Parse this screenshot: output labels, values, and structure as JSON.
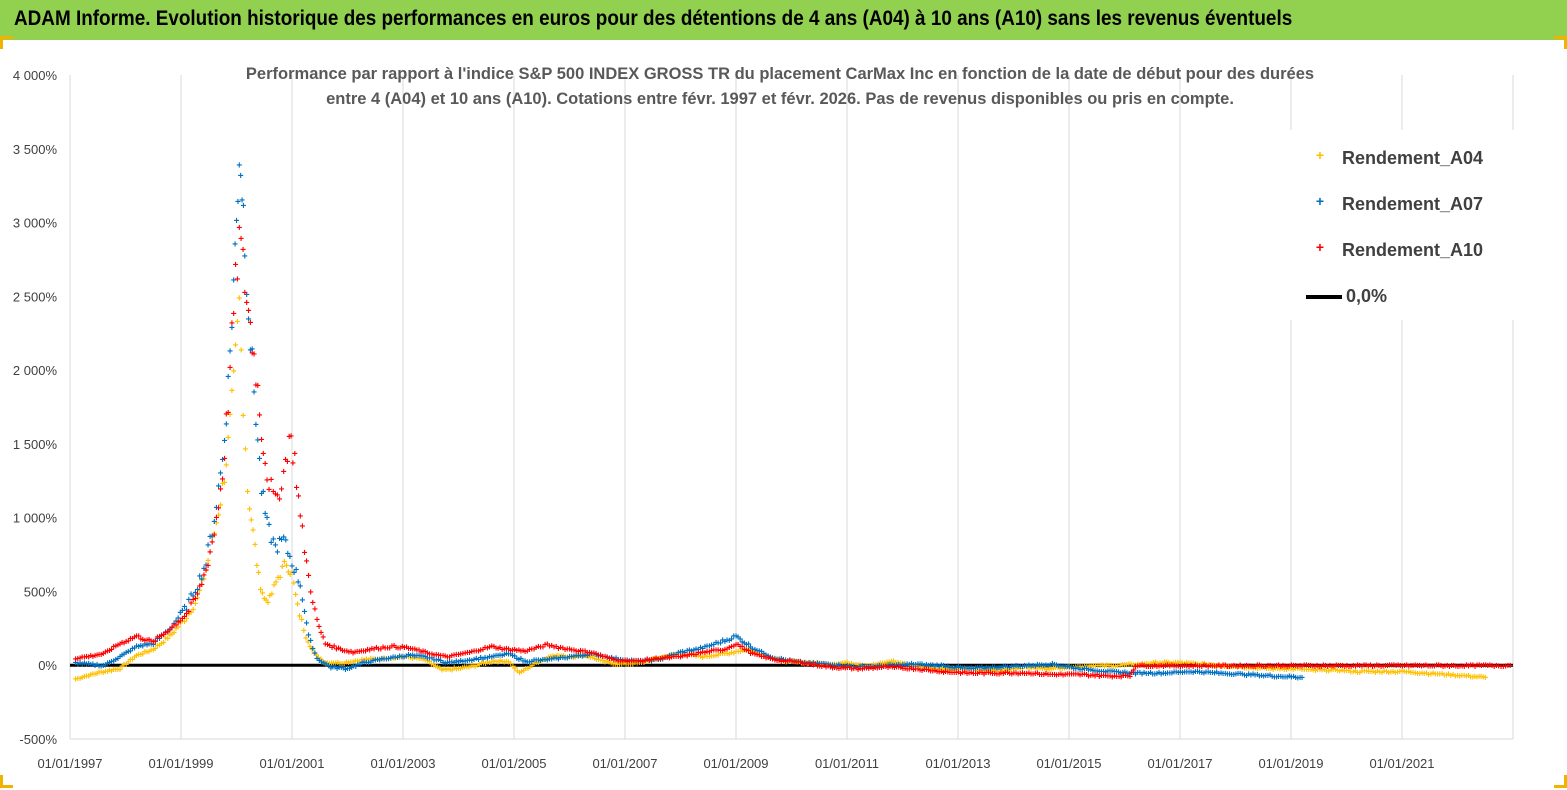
{
  "banner": {
    "title": "ADAM Informe. Evolution historique des performances en euros pour des détentions de 4 ans (A04) à 10 ans (A10) sans les revenus éventuels",
    "background": "#92d050"
  },
  "chart_data": {
    "type": "scatter",
    "title_lines": [
      "Performance par rapport à l'indice S&P 500 INDEX GROSS TR  du placement CarMax Inc en fonction de la date de début pour des durées",
      "entre 4 (A04) et 10 ans (A10). Cotations entre févr. 1997 et févr. 2026.  Pas de revenus disponibles ou pris en compte."
    ],
    "ylim": [
      -500,
      4000
    ],
    "y_unit": "%",
    "y_ticks": [
      "-500%",
      "0%",
      "500%",
      "1 000%",
      "1 500%",
      "2 000%",
      "2 500%",
      "3 000%",
      "3 500%",
      "4 000%"
    ],
    "x_ticks": [
      "01/01/1997",
      "01/01/1999",
      "01/01/2001",
      "01/01/2003",
      "01/01/2005",
      "01/01/2007",
      "01/01/2009",
      "01/01/2011",
      "01/01/2013",
      "01/01/2015",
      "01/01/2017",
      "01/01/2019",
      "01/01/2021"
    ],
    "xlim": [
      1997.0,
      2023.0
    ],
    "grid": "vertical",
    "legend_position": "top-right",
    "series": [
      {
        "name": "Rendement_A04",
        "color": "#ffc000",
        "marker": "+",
        "points": [
          [
            1997.1,
            -90
          ],
          [
            1997.3,
            -70
          ],
          [
            1997.6,
            -40
          ],
          [
            1997.9,
            -20
          ],
          [
            1998.2,
            70
          ],
          [
            1998.5,
            110
          ],
          [
            1998.8,
            200
          ],
          [
            1999.1,
            330
          ],
          [
            1999.3,
            450
          ],
          [
            1999.45,
            650
          ],
          [
            1999.6,
            900
          ],
          [
            1999.75,
            1200
          ],
          [
            1999.85,
            1500
          ],
          [
            1999.95,
            1900
          ],
          [
            2000.05,
            2450
          ],
          [
            2000.12,
            1800
          ],
          [
            2000.2,
            1200
          ],
          [
            2000.3,
            900
          ],
          [
            2000.4,
            600
          ],
          [
            2000.5,
            450
          ],
          [
            2000.6,
            450
          ],
          [
            2000.75,
            600
          ],
          [
            2000.9,
            700
          ],
          [
            2001.0,
            620
          ],
          [
            2001.1,
            400
          ],
          [
            2001.25,
            200
          ],
          [
            2001.4,
            80
          ],
          [
            2001.6,
            20
          ],
          [
            2001.9,
            20
          ],
          [
            2002.3,
            40
          ],
          [
            2002.7,
            50
          ],
          [
            2003.1,
            60
          ],
          [
            2003.4,
            40
          ],
          [
            2003.7,
            -30
          ],
          [
            2004.0,
            -20
          ],
          [
            2004.3,
            0
          ],
          [
            2004.6,
            30
          ],
          [
            2004.9,
            30
          ],
          [
            2005.1,
            -50
          ],
          [
            2005.4,
            20
          ],
          [
            2005.7,
            70
          ],
          [
            2006.0,
            60
          ],
          [
            2006.3,
            70
          ],
          [
            2006.6,
            30
          ],
          [
            2006.9,
            10
          ],
          [
            2007.3,
            20
          ],
          [
            2007.7,
            60
          ],
          [
            2008.0,
            80
          ],
          [
            2008.4,
            60
          ],
          [
            2008.8,
            80
          ],
          [
            2009.2,
            110
          ],
          [
            2009.5,
            70
          ],
          [
            2009.9,
            30
          ],
          [
            2010.3,
            20
          ],
          [
            2010.7,
            10
          ],
          [
            2011.0,
            20
          ],
          [
            2011.4,
            0
          ],
          [
            2011.8,
            30
          ],
          [
            2012.2,
            0
          ],
          [
            2012.6,
            -20
          ],
          [
            2013.0,
            -20
          ],
          [
            2013.4,
            -30
          ],
          [
            2013.8,
            -30
          ],
          [
            2014.2,
            -10
          ],
          [
            2014.6,
            -20
          ],
          [
            2015.0,
            -10
          ],
          [
            2015.4,
            0
          ],
          [
            2015.8,
            0
          ],
          [
            2016.2,
            10
          ],
          [
            2016.6,
            20
          ],
          [
            2017.0,
            20
          ],
          [
            2017.4,
            10
          ],
          [
            2017.8,
            0
          ],
          [
            2018.2,
            -10
          ],
          [
            2018.6,
            -20
          ],
          [
            2019.0,
            -20
          ],
          [
            2019.4,
            -30
          ],
          [
            2019.8,
            -30
          ],
          [
            2020.2,
            -40
          ],
          [
            2020.6,
            -40
          ],
          [
            2021.0,
            -40
          ],
          [
            2021.4,
            -50
          ],
          [
            2021.8,
            -60
          ],
          [
            2022.2,
            -70
          ],
          [
            2022.5,
            -80
          ]
        ]
      },
      {
        "name": "Rendement_A07",
        "color": "#0070c0",
        "marker": "+",
        "points": [
          [
            1997.1,
            20
          ],
          [
            1997.3,
            10
          ],
          [
            1997.6,
            0
          ],
          [
            1997.9,
            60
          ],
          [
            1998.2,
            130
          ],
          [
            1998.5,
            150
          ],
          [
            1998.8,
            250
          ],
          [
            1999.1,
            400
          ],
          [
            1999.3,
            550
          ],
          [
            1999.45,
            700
          ],
          [
            1999.6,
            1000
          ],
          [
            1999.75,
            1400
          ],
          [
            1999.85,
            1900
          ],
          [
            1999.95,
            2600
          ],
          [
            2000.0,
            3000
          ],
          [
            2000.05,
            3500
          ],
          [
            2000.1,
            3250
          ],
          [
            2000.15,
            2900
          ],
          [
            2000.25,
            2200
          ],
          [
            2000.35,
            1700
          ],
          [
            2000.45,
            1200
          ],
          [
            2000.55,
            950
          ],
          [
            2000.7,
            800
          ],
          [
            2000.85,
            850
          ],
          [
            2001.0,
            700
          ],
          [
            2001.15,
            550
          ],
          [
            2001.3,
            200
          ],
          [
            2001.45,
            50
          ],
          [
            2001.7,
            -10
          ],
          [
            2002.0,
            -20
          ],
          [
            2002.3,
            20
          ],
          [
            2002.7,
            50
          ],
          [
            2003.1,
            70
          ],
          [
            2003.4,
            60
          ],
          [
            2003.8,
            20
          ],
          [
            2004.2,
            40
          ],
          [
            2004.6,
            60
          ],
          [
            2004.9,
            80
          ],
          [
            2005.2,
            30
          ],
          [
            2005.6,
            40
          ],
          [
            2006.0,
            60
          ],
          [
            2006.4,
            80
          ],
          [
            2006.8,
            50
          ],
          [
            2007.2,
            30
          ],
          [
            2007.6,
            40
          ],
          [
            2008.0,
            90
          ],
          [
            2008.4,
            120
          ],
          [
            2008.8,
            170
          ],
          [
            2009.0,
            200
          ],
          [
            2009.3,
            120
          ],
          [
            2009.7,
            50
          ],
          [
            2010.2,
            20
          ],
          [
            2010.7,
            10
          ],
          [
            2011.2,
            -10
          ],
          [
            2011.7,
            0
          ],
          [
            2012.2,
            10
          ],
          [
            2012.7,
            0
          ],
          [
            2013.2,
            -20
          ],
          [
            2013.7,
            -10
          ],
          [
            2014.2,
            0
          ],
          [
            2014.7,
            10
          ],
          [
            2015.2,
            -20
          ],
          [
            2015.7,
            -40
          ],
          [
            2016.2,
            -50
          ],
          [
            2016.7,
            -50
          ],
          [
            2017.2,
            -40
          ],
          [
            2017.7,
            -50
          ],
          [
            2018.2,
            -60
          ],
          [
            2018.7,
            -70
          ],
          [
            2019.2,
            -80
          ]
        ]
      },
      {
        "name": "Rendement_A10",
        "color": "#ff0000",
        "marker": "+",
        "points": [
          [
            1997.1,
            50
          ],
          [
            1997.3,
            60
          ],
          [
            1997.6,
            80
          ],
          [
            1997.9,
            150
          ],
          [
            1998.2,
            200
          ],
          [
            1998.5,
            160
          ],
          [
            1998.8,
            250
          ],
          [
            1999.1,
            350
          ],
          [
            1999.3,
            480
          ],
          [
            1999.45,
            650
          ],
          [
            1999.6,
            900
          ],
          [
            1999.75,
            1300
          ],
          [
            1999.85,
            1800
          ],
          [
            1999.95,
            2400
          ],
          [
            2000.05,
            2900
          ],
          [
            2000.15,
            2600
          ],
          [
            2000.25,
            2300
          ],
          [
            2000.35,
            2000
          ],
          [
            2000.45,
            1600
          ],
          [
            2000.55,
            1300
          ],
          [
            2000.7,
            1100
          ],
          [
            2000.85,
            1300
          ],
          [
            2000.95,
            1550
          ],
          [
            2001.05,
            1400
          ],
          [
            2001.15,
            1000
          ],
          [
            2001.3,
            600
          ],
          [
            2001.45,
            300
          ],
          [
            2001.6,
            150
          ],
          [
            2001.8,
            120
          ],
          [
            2002.1,
            90
          ],
          [
            2002.4,
            110
          ],
          [
            2002.8,
            130
          ],
          [
            2003.1,
            120
          ],
          [
            2003.4,
            90
          ],
          [
            2003.8,
            60
          ],
          [
            2004.2,
            90
          ],
          [
            2004.6,
            130
          ],
          [
            2004.9,
            110
          ],
          [
            2005.2,
            100
          ],
          [
            2005.6,
            140
          ],
          [
            2006.0,
            110
          ],
          [
            2006.4,
            90
          ],
          [
            2006.8,
            40
          ],
          [
            2007.2,
            30
          ],
          [
            2007.6,
            50
          ],
          [
            2008.0,
            60
          ],
          [
            2008.4,
            90
          ],
          [
            2008.8,
            110
          ],
          [
            2009.0,
            150
          ],
          [
            2009.3,
            80
          ],
          [
            2009.7,
            40
          ],
          [
            2010.2,
            20
          ],
          [
            2010.7,
            -10
          ],
          [
            2011.2,
            -20
          ],
          [
            2011.7,
            -10
          ],
          [
            2012.2,
            -20
          ],
          [
            2012.7,
            -40
          ],
          [
            2013.2,
            -50
          ],
          [
            2013.7,
            -50
          ],
          [
            2014.2,
            -50
          ],
          [
            2014.7,
            -60
          ],
          [
            2015.2,
            -60
          ],
          [
            2015.7,
            -70
          ],
          [
            2016.1,
            -70
          ],
          [
            2016.2,
            0
          ],
          [
            2016.7,
            0
          ],
          [
            2017.2,
            0
          ],
          [
            2017.7,
            0
          ],
          [
            2018.2,
            0
          ],
          [
            2018.7,
            0
          ],
          [
            2019.2,
            0
          ],
          [
            2019.7,
            0
          ],
          [
            2020.2,
            0
          ],
          [
            2020.7,
            0
          ],
          [
            2021.2,
            0
          ],
          [
            2021.7,
            0
          ],
          [
            2022.2,
            0
          ],
          [
            2022.7,
            0
          ],
          [
            2022.95,
            0
          ]
        ]
      }
    ],
    "reference_line": {
      "name": "0,0%",
      "value": 0,
      "color": "#000000"
    }
  }
}
